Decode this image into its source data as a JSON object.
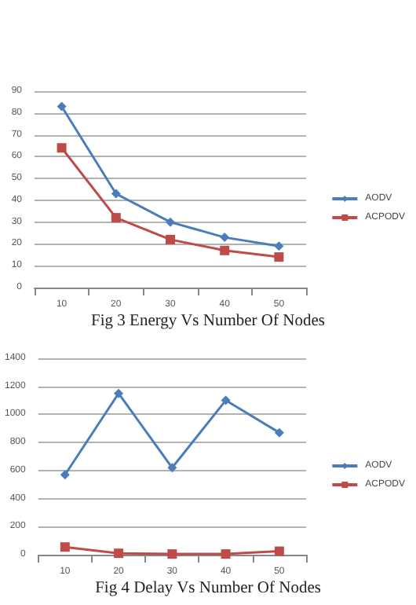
{
  "chart_data": [
    {
      "type": "line",
      "title": "Fig 3 Energy Vs Number Of Nodes",
      "categories": [
        "10",
        "20",
        "30",
        "40",
        "50"
      ],
      "series": [
        {
          "name": "AODV",
          "color": "#4a7ebb",
          "marker": "diamond",
          "values": [
            83,
            43,
            30,
            23,
            19
          ]
        },
        {
          "name": "ACPODV",
          "color": "#be4b48",
          "marker": "square",
          "values": [
            64,
            32,
            22,
            17,
            14
          ]
        }
      ],
      "ylim": [
        0,
        90
      ],
      "yticks": [
        0,
        10,
        20,
        30,
        40,
        50,
        60,
        70,
        80,
        90
      ],
      "grid": "y",
      "legend": "right"
    },
    {
      "type": "line",
      "title": "Fig 4 Delay Vs Number Of Nodes",
      "categories": [
        "10",
        "20",
        "30",
        "40",
        "50"
      ],
      "series": [
        {
          "name": "AODV",
          "color": "#4a7ebb",
          "marker": "diamond",
          "values": [
            570,
            1150,
            620,
            1100,
            870
          ]
        },
        {
          "name": "ACPODV",
          "color": "#be4b48",
          "marker": "square",
          "values": [
            55,
            10,
            5,
            5,
            25
          ]
        }
      ],
      "ylim": [
        0,
        1400
      ],
      "yticks": [
        0,
        200,
        400,
        600,
        800,
        1000,
        1200,
        1400
      ],
      "grid": "y",
      "legend": "right"
    }
  ]
}
